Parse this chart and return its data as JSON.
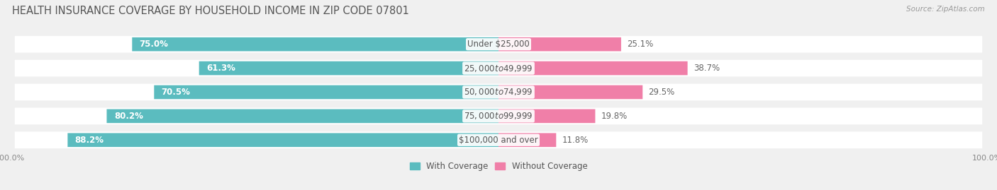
{
  "title": "HEALTH INSURANCE COVERAGE BY HOUSEHOLD INCOME IN ZIP CODE 07801",
  "source": "Source: ZipAtlas.com",
  "categories": [
    "Under $25,000",
    "$25,000 to $49,999",
    "$50,000 to $74,999",
    "$75,000 to $99,999",
    "$100,000 and over"
  ],
  "with_coverage": [
    75.0,
    61.3,
    70.5,
    80.2,
    88.2
  ],
  "without_coverage": [
    25.1,
    38.7,
    29.5,
    19.8,
    11.8
  ],
  "coverage_color": "#5bbcbf",
  "no_coverage_color": "#f07fa8",
  "bg_color": "#f0f0f0",
  "bar_bg_color": "#e8e8e8",
  "title_fontsize": 10.5,
  "label_fontsize": 8.5,
  "tick_fontsize": 8,
  "source_fontsize": 7.5
}
